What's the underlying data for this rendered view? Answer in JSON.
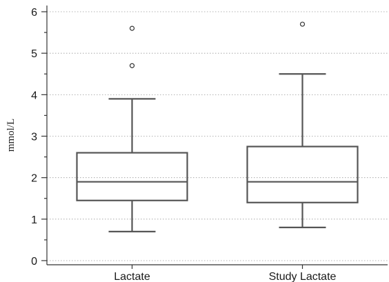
{
  "chart_data": {
    "type": "box",
    "title": "",
    "xlabel": "",
    "ylabel": "mmol/L",
    "ylim": [
      -0.1,
      6.15
    ],
    "y_ticks": [
      0,
      1,
      2,
      3,
      4,
      5,
      6
    ],
    "y_minor_step": 0.5,
    "grid": true,
    "categories": [
      "Lactate",
      "Study Lactate"
    ],
    "boxes": [
      {
        "category": "Lactate",
        "whisker_low": 0.7,
        "q1": 1.45,
        "median": 1.9,
        "q3": 2.6,
        "whisker_high": 3.9,
        "outliers": [
          4.7,
          5.6
        ]
      },
      {
        "category": "Study Lactate",
        "whisker_low": 0.8,
        "q1": 1.4,
        "median": 1.9,
        "q3": 2.75,
        "whisker_high": 4.5,
        "outliers": [
          5.7
        ]
      }
    ]
  }
}
